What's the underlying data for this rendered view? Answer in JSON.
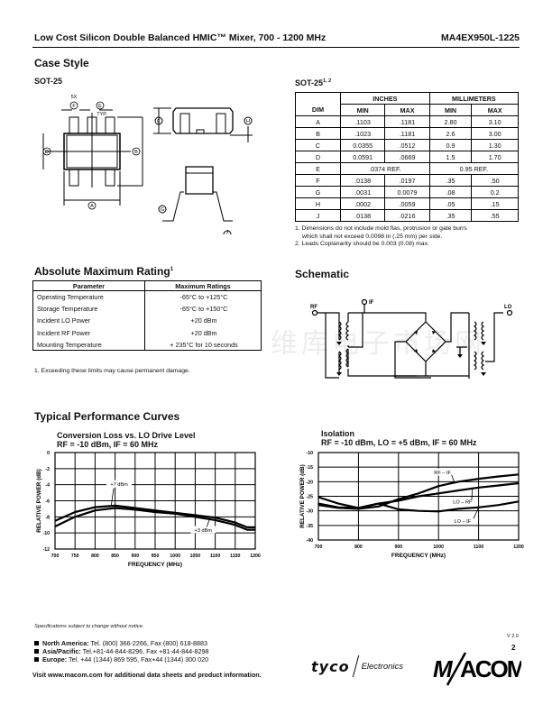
{
  "header": {
    "title": "Low Cost Silicon Double Balanced HMIC™ Mixer, 700 - 1200 MHz",
    "part": "MA4EX950L-1225"
  },
  "case_style": {
    "heading": "Case Style",
    "drawing_title": "SOT-25",
    "labels": {
      "f_count": "5X",
      "e_typ": "TYP."
    }
  },
  "dim_table": {
    "title": "SOT-25",
    "title_sup": "1, 2",
    "group_headers": [
      "INCHES",
      "MILLIMETERS"
    ],
    "columns": [
      "DIM",
      "MIN",
      "MAX",
      "MIN",
      "MAX"
    ],
    "rows": [
      [
        "A",
        ".1103",
        ".1181",
        "2.80",
        "3.10"
      ],
      [
        "B",
        ".1023",
        ".1181",
        "2.6",
        "3.00"
      ],
      [
        "C",
        "0.0355",
        ".0512",
        "0.9",
        "1.30"
      ],
      [
        "D",
        "0.0591",
        ".0669",
        "1.5",
        "1.70"
      ],
      [
        "E",
        ".0374 REF.",
        "",
        "0.95 REF.",
        ""
      ],
      [
        "F",
        ".0138",
        ".0197",
        ".35",
        ".50"
      ],
      [
        "G",
        ".0031",
        "0.0079",
        ".08",
        "0.2"
      ],
      [
        "H",
        ".0002",
        ".0059",
        ".05",
        ".15"
      ],
      [
        "J",
        ".0138",
        ".0216",
        ".35",
        ".55"
      ]
    ],
    "notes": [
      "1.  Dimensions do not include mold flas, protrusion or gate burrs",
      "which shall not exceed 0.0098 in (.25 mm) per side.",
      "2.  Leads Coplanarity should be 0.003 (0.08) max."
    ]
  },
  "abs_max": {
    "heading": "Absolute Maximum Rating",
    "sup": "1",
    "columns": [
      "Parameter",
      "Maximum Ratings"
    ],
    "rows": [
      [
        "Operating Temperature",
        "-65°C to +125°C"
      ],
      [
        "Storage Temperature",
        "-65°C to +150°C"
      ],
      [
        "Incident LO Power",
        "+20 dBm"
      ],
      [
        "Incident RF Power",
        "+20 dBm"
      ],
      [
        "Mounting Temperature",
        "+ 235°C for 10 seconds"
      ]
    ],
    "note": "1.  Exceeding these limits may cause permanent damage."
  },
  "schematic": {
    "heading": "Schematic",
    "ports": {
      "rf": "RF",
      "if": "IF",
      "lo": "LO"
    }
  },
  "watermark": "维库电子市场网",
  "curves_heading": "Typical Performance Curves",
  "chart_data": [
    {
      "type": "line",
      "title": "Conversion Loss vs. LO Drive Level",
      "subtitle": "RF = -10 dBm, IF = 60 MHz",
      "xlabel": "FREQUENCY (MHz)",
      "ylabel": "RELATIVE POWER (dB)",
      "xlim": [
        700,
        1200
      ],
      "ylim": [
        -12,
        0
      ],
      "xticks": [
        700,
        750,
        800,
        850,
        900,
        950,
        1000,
        1050,
        1100,
        1150,
        1200
      ],
      "yticks": [
        0,
        -2,
        -4,
        -6,
        -8,
        -10,
        -12
      ],
      "grid": true,
      "x": [
        700,
        750,
        800,
        850,
        900,
        950,
        1000,
        1050,
        1100,
        1150,
        1180,
        1200
      ],
      "series": [
        {
          "name": "+7 dBm",
          "values": [
            -8.5,
            -7.4,
            -6.8,
            -6.6,
            -6.9,
            -7.2,
            -7.5,
            -7.8,
            -8.1,
            -8.7,
            -9.3,
            -9.3
          ]
        },
        {
          "name": "+3 dBm",
          "values": [
            -9.2,
            -8.0,
            -7.2,
            -6.9,
            -7.1,
            -7.4,
            -7.6,
            -8.0,
            -8.4,
            -9.0,
            -9.6,
            -9.6
          ]
        }
      ]
    },
    {
      "type": "line",
      "title": "Isolation",
      "subtitle": "RF = -10 dBm, LO = +5 dBm, IF = 60 MHz",
      "xlabel": "FREQUENCY (MHz)",
      "ylabel": "RELATIVE POWER (dB)",
      "xlim": [
        700,
        1200
      ],
      "ylim": [
        -40,
        -10
      ],
      "xticks": [
        700,
        800,
        900,
        1000,
        1100,
        1200
      ],
      "yticks": [
        -10,
        -15,
        -20,
        -25,
        -30,
        -35,
        -40
      ],
      "grid": true,
      "x": [
        700,
        750,
        800,
        850,
        900,
        950,
        1000,
        1050,
        1100,
        1150,
        1200
      ],
      "series": [
        {
          "name": "RF – IF",
          "values": [
            -28,
            -29,
            -29.3,
            -28.5,
            -26,
            -24,
            -21.5,
            -20,
            -19,
            -18.2,
            -17.5
          ]
        },
        {
          "name": "LO – RF",
          "values": [
            -27.5,
            -28.8,
            -29,
            -27.5,
            -26.5,
            -25,
            -24,
            -23,
            -22,
            -21.3,
            -20.5
          ]
        },
        {
          "name": "LO – IF",
          "values": [
            -25.3,
            -27.5,
            -29,
            -27.5,
            -29.5,
            -30,
            -30.2,
            -29.3,
            -28.8,
            -28,
            -26.8
          ]
        }
      ]
    }
  ],
  "footer": {
    "disclaimer": "Specifications subject to change without notice.",
    "version": "V 2.0",
    "page": "2",
    "contacts": [
      {
        "region": "North America:",
        "text": "Tel. (800) 366-2266,  Fax (800) 618-8883"
      },
      {
        "region": "Asia/Pacific:",
        "text": "Tel.+81-44-844-8296,  Fax +81-44-844-8298"
      },
      {
        "region": "Europe:",
        "text": "Tel. +44 (1344) 869 595,  Fax+44 (1344) 300 020"
      }
    ],
    "visit": "Visit www.macom.com for additional data sheets and product information.",
    "logos": {
      "tyco": "tyco",
      "electronics": "Electronics",
      "macom": "M/A-COM"
    }
  }
}
